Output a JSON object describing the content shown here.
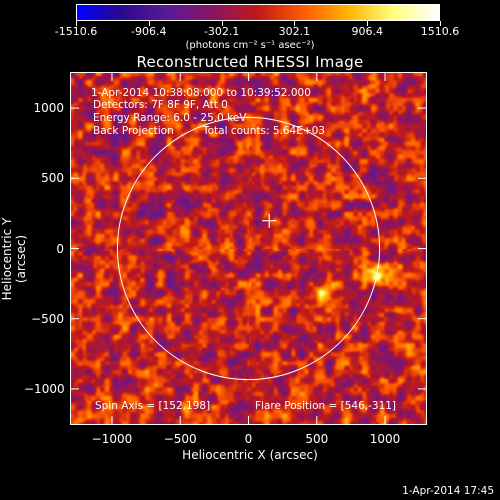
{
  "colorbar": {
    "tick_labels": [
      "-1510.6",
      "-906.4",
      "-302.1",
      "302.1",
      "906.4",
      "1510.6"
    ],
    "units": "(photons cm⁻² s⁻¹ asec⁻²)",
    "colors": [
      "#0000ff",
      "#2b0a8c",
      "#5a1a9a",
      "#8a1560",
      "#c01a1a",
      "#ff5a00",
      "#ffb400",
      "#ffff80",
      "#ffffff"
    ]
  },
  "title": "Reconstructed RHESSI Image",
  "annotations": {
    "time": "1-Apr-2014 10:38:08.000 to 10:39:52.000",
    "detectors": "Detectors: 7F 8F 9F, Att 0",
    "energy": "Energy Range: 6.0 - 25.0 keV",
    "method": "Back Projection",
    "counts": "Total counts: 5.64E+03",
    "spin_axis": "Spin Axis = [152,198]",
    "flare_position": "Flare Position = [546,-311]"
  },
  "footer": {
    "datestamp": "1-Apr-2014 17:45"
  },
  "chart_data": {
    "type": "heatmap",
    "title": "Reconstructed RHESSI Image",
    "xlabel": "Heliocentric X (arcsec)",
    "ylabel": "Heliocentric Y (arcsec)",
    "xlim": [
      -1300,
      1300
    ],
    "ylim": [
      -1250,
      1250
    ],
    "x_ticks": [
      -1000,
      -500,
      0,
      500,
      1000
    ],
    "y_ticks": [
      -1000,
      -500,
      0,
      500,
      1000
    ],
    "x_tick_labels": [
      "−1000",
      "−500",
      "0",
      "500",
      "1000"
    ],
    "y_tick_labels": [
      "1000",
      "500",
      "0",
      "−500",
      "−1000"
    ],
    "colorbar_range": [
      -1510.6,
      1510.6
    ],
    "solar_disk_radius_arcsec": 960,
    "solar_disk_center": [
      0,
      0
    ],
    "marker_position": [
      152,
      198
    ],
    "bright_sources": [
      {
        "x": 546,
        "y": -311,
        "value": 1510.6
      },
      {
        "x": 940,
        "y": -200,
        "value": 1400
      }
    ],
    "grid": false
  }
}
